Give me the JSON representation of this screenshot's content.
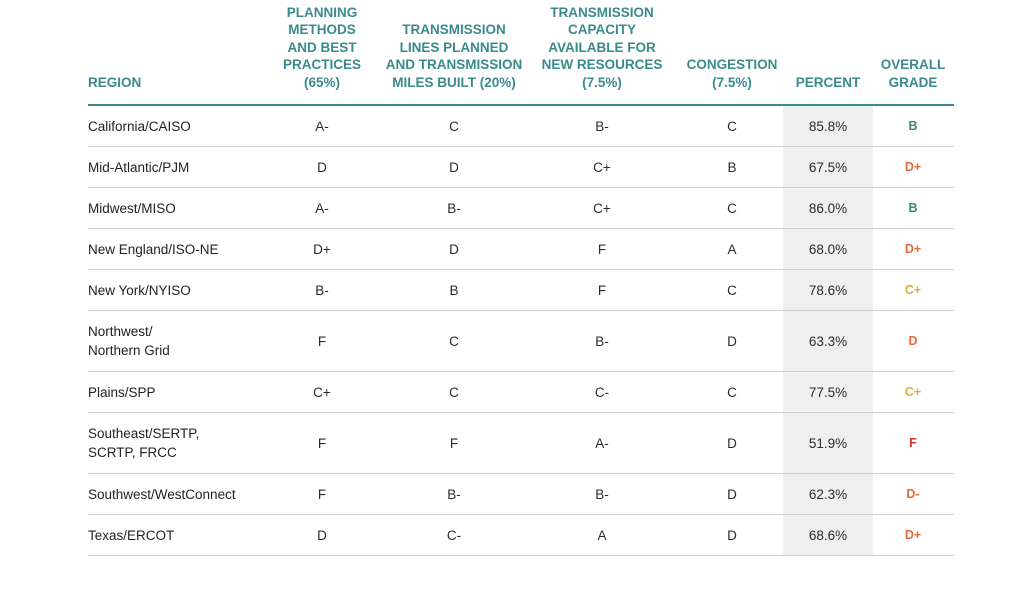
{
  "headers": {
    "region": "REGION",
    "planning": [
      "PLANNING",
      "METHODS",
      "AND BEST",
      "PRACTICES",
      "(65%)"
    ],
    "transmission_lines": [
      "TRANSMISSION",
      "LINES PLANNED",
      "AND TRANSMISSION",
      "MILES BUILT (20%)"
    ],
    "capacity": [
      "TRANSMISSION",
      "CAPACITY",
      "AVAILABLE FOR",
      "NEW RESOURCES",
      "(7.5%)"
    ],
    "congestion": [
      "CONGESTION",
      "(7.5%)"
    ],
    "percent": "PERCENT",
    "overall": [
      "OVERALL",
      "GRADE"
    ]
  },
  "grade_colors": {
    "B": "#3f8a62",
    "C": "#e0a93b",
    "D": "#e8693a",
    "F": "#c9382a"
  },
  "rows": [
    {
      "region": [
        "California/CAISO"
      ],
      "planning": "A-",
      "lines": "C",
      "capacity": "B-",
      "congestion": "C",
      "percent": "85.8%",
      "grade": "B"
    },
    {
      "region": [
        "Mid-Atlantic/PJM"
      ],
      "planning": "D",
      "lines": "D",
      "capacity": "C+",
      "congestion": "B",
      "percent": "67.5%",
      "grade": "D+"
    },
    {
      "region": [
        "Midwest/MISO"
      ],
      "planning": "A-",
      "lines": "B-",
      "capacity": "C+",
      "congestion": "C",
      "percent": "86.0%",
      "grade": "B"
    },
    {
      "region": [
        "New England/ISO-NE"
      ],
      "planning": "D+",
      "lines": "D",
      "capacity": "F",
      "congestion": "A",
      "percent": "68.0%",
      "grade": "D+"
    },
    {
      "region": [
        "New York/NYISO"
      ],
      "planning": "B-",
      "lines": "B",
      "capacity": "F",
      "congestion": "C",
      "percent": "78.6%",
      "grade": "C+"
    },
    {
      "region": [
        "Northwest/",
        "Northern Grid"
      ],
      "planning": "F",
      "lines": "C",
      "capacity": "B-",
      "congestion": "D",
      "percent": "63.3%",
      "grade": "D"
    },
    {
      "region": [
        "Plains/SPP"
      ],
      "planning": "C+",
      "lines": "C",
      "capacity": "C-",
      "congestion": "C",
      "percent": "77.5%",
      "grade": "C+"
    },
    {
      "region": [
        "Southeast/SERTP,",
        "SCRTP, FRCC"
      ],
      "planning": "F",
      "lines": "F",
      "capacity": "A-",
      "congestion": "D",
      "percent": "51.9%",
      "grade": "F"
    },
    {
      "region": [
        "Southwest/WestConnect"
      ],
      "planning": "F",
      "lines": "B-",
      "capacity": "B-",
      "congestion": "D",
      "percent": "62.3%",
      "grade": "D-"
    },
    {
      "region": [
        "Texas/ERCOT"
      ],
      "planning": "D",
      "lines": "C-",
      "capacity": "A",
      "congestion": "D",
      "percent": "68.6%",
      "grade": "D+"
    }
  ]
}
